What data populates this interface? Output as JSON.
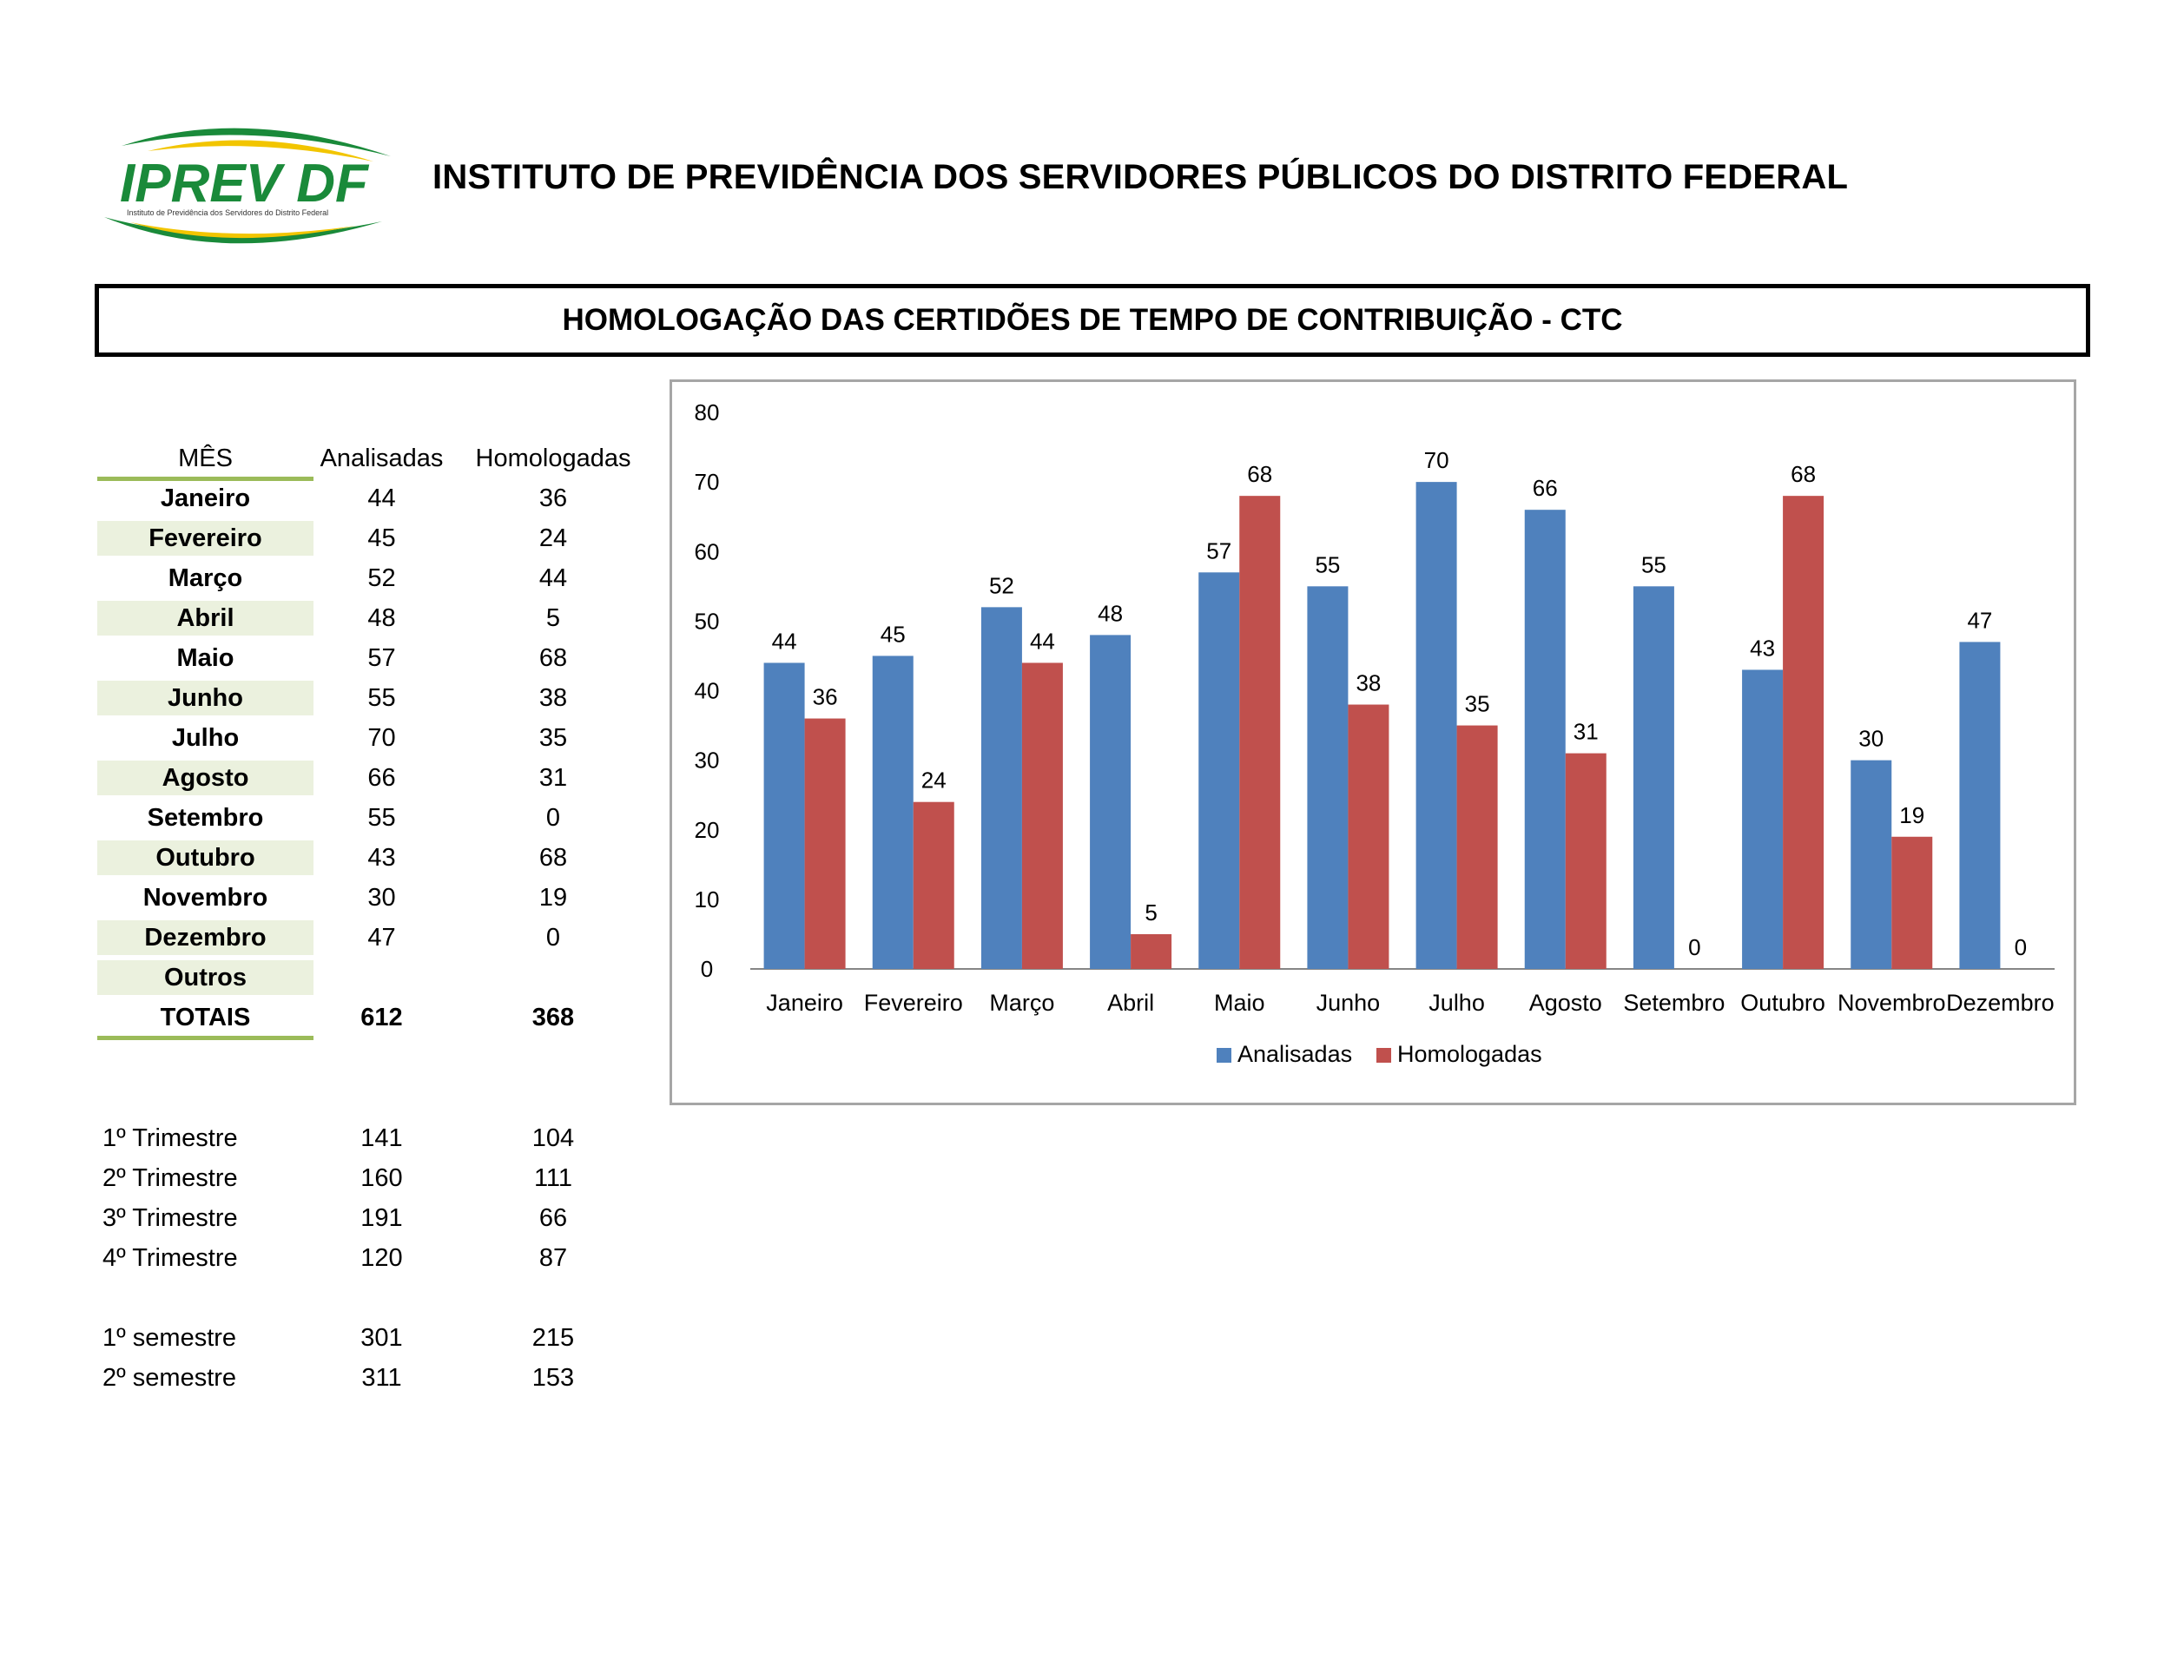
{
  "header": {
    "logo_text": "IPREV DF",
    "logo_tagline": "Instituto de Previdência dos Servidores do Distrito Federal",
    "title": "INSTITUTO DE PREVIDÊNCIA DOS SERVIDORES PÚBLICOS DO DISTRITO FEDERAL",
    "subtitle": "HOMOLOGAÇÃO DAS CERTIDÕES DE TEMPO DE CONTRIBUIÇÃO - CTC"
  },
  "colors": {
    "analisadas": "#4f81bd",
    "homologadas": "#c0504d",
    "row_shade": "#ebf1de",
    "green_rule": "#9bbb59",
    "logo_green": "#1a8a3a",
    "logo_yellow": "#f2c500"
  },
  "table": {
    "headers": {
      "month": "MÊS",
      "analisadas": "Analisadas",
      "homologadas": "Homologadas"
    },
    "rows": [
      {
        "month": "Janeiro",
        "analisadas": "44",
        "homologadas": "36"
      },
      {
        "month": "Fevereiro",
        "analisadas": "45",
        "homologadas": "24"
      },
      {
        "month": "Março",
        "analisadas": "52",
        "homologadas": "44"
      },
      {
        "month": "Abril",
        "analisadas": "48",
        "homologadas": "5"
      },
      {
        "month": "Maio",
        "analisadas": "57",
        "homologadas": "68"
      },
      {
        "month": "Junho",
        "analisadas": "55",
        "homologadas": "38"
      },
      {
        "month": "Julho",
        "analisadas": "70",
        "homologadas": "35"
      },
      {
        "month": "Agosto",
        "analisadas": "66",
        "homologadas": "31"
      },
      {
        "month": "Setembro",
        "analisadas": "55",
        "homologadas": "0"
      },
      {
        "month": "Outubro",
        "analisadas": "43",
        "homologadas": "68"
      },
      {
        "month": "Novembro",
        "analisadas": "30",
        "homologadas": "19"
      },
      {
        "month": "Dezembro",
        "analisadas": "47",
        "homologadas": "0"
      },
      {
        "month": "Outros",
        "analisadas": "",
        "homologadas": ""
      }
    ],
    "totals": {
      "label": "TOTAIS",
      "analisadas": "612",
      "homologadas": "368"
    }
  },
  "quarters": [
    {
      "label": "1º Trimestre",
      "analisadas": "141",
      "homologadas": "104"
    },
    {
      "label": "2º Trimestre",
      "analisadas": "160",
      "homologadas": "111"
    },
    {
      "label": "3º Trimestre",
      "analisadas": "191",
      "homologadas": "66"
    },
    {
      "label": "4º Trimestre",
      "analisadas": "120",
      "homologadas": "87"
    }
  ],
  "semesters": [
    {
      "label": "1º semestre",
      "analisadas": "301",
      "homologadas": "215"
    },
    {
      "label": "2º semestre",
      "analisadas": "311",
      "homologadas": "153"
    }
  ],
  "chart_data": {
    "type": "bar",
    "categories": [
      "Janeiro",
      "Fevereiro",
      "Março",
      "Abril",
      "Maio",
      "Junho",
      "Julho",
      "Agosto",
      "Setembro",
      "Outubro",
      "Novembro",
      "Dezembro"
    ],
    "series": [
      {
        "name": "Analisadas",
        "color": "#4f81bd",
        "values": [
          44,
          45,
          52,
          48,
          57,
          55,
          70,
          66,
          55,
          43,
          30,
          47
        ]
      },
      {
        "name": "Homologadas",
        "color": "#c0504d",
        "values": [
          36,
          24,
          44,
          5,
          68,
          38,
          35,
          31,
          0,
          68,
          19,
          0
        ]
      }
    ],
    "ylim": [
      0,
      80
    ],
    "yticks": [
      0,
      10,
      20,
      30,
      40,
      50,
      60,
      70,
      80
    ],
    "grid": false,
    "data_labels": true,
    "legend": "bottom",
    "title": "",
    "xlabel": "",
    "ylabel": ""
  }
}
